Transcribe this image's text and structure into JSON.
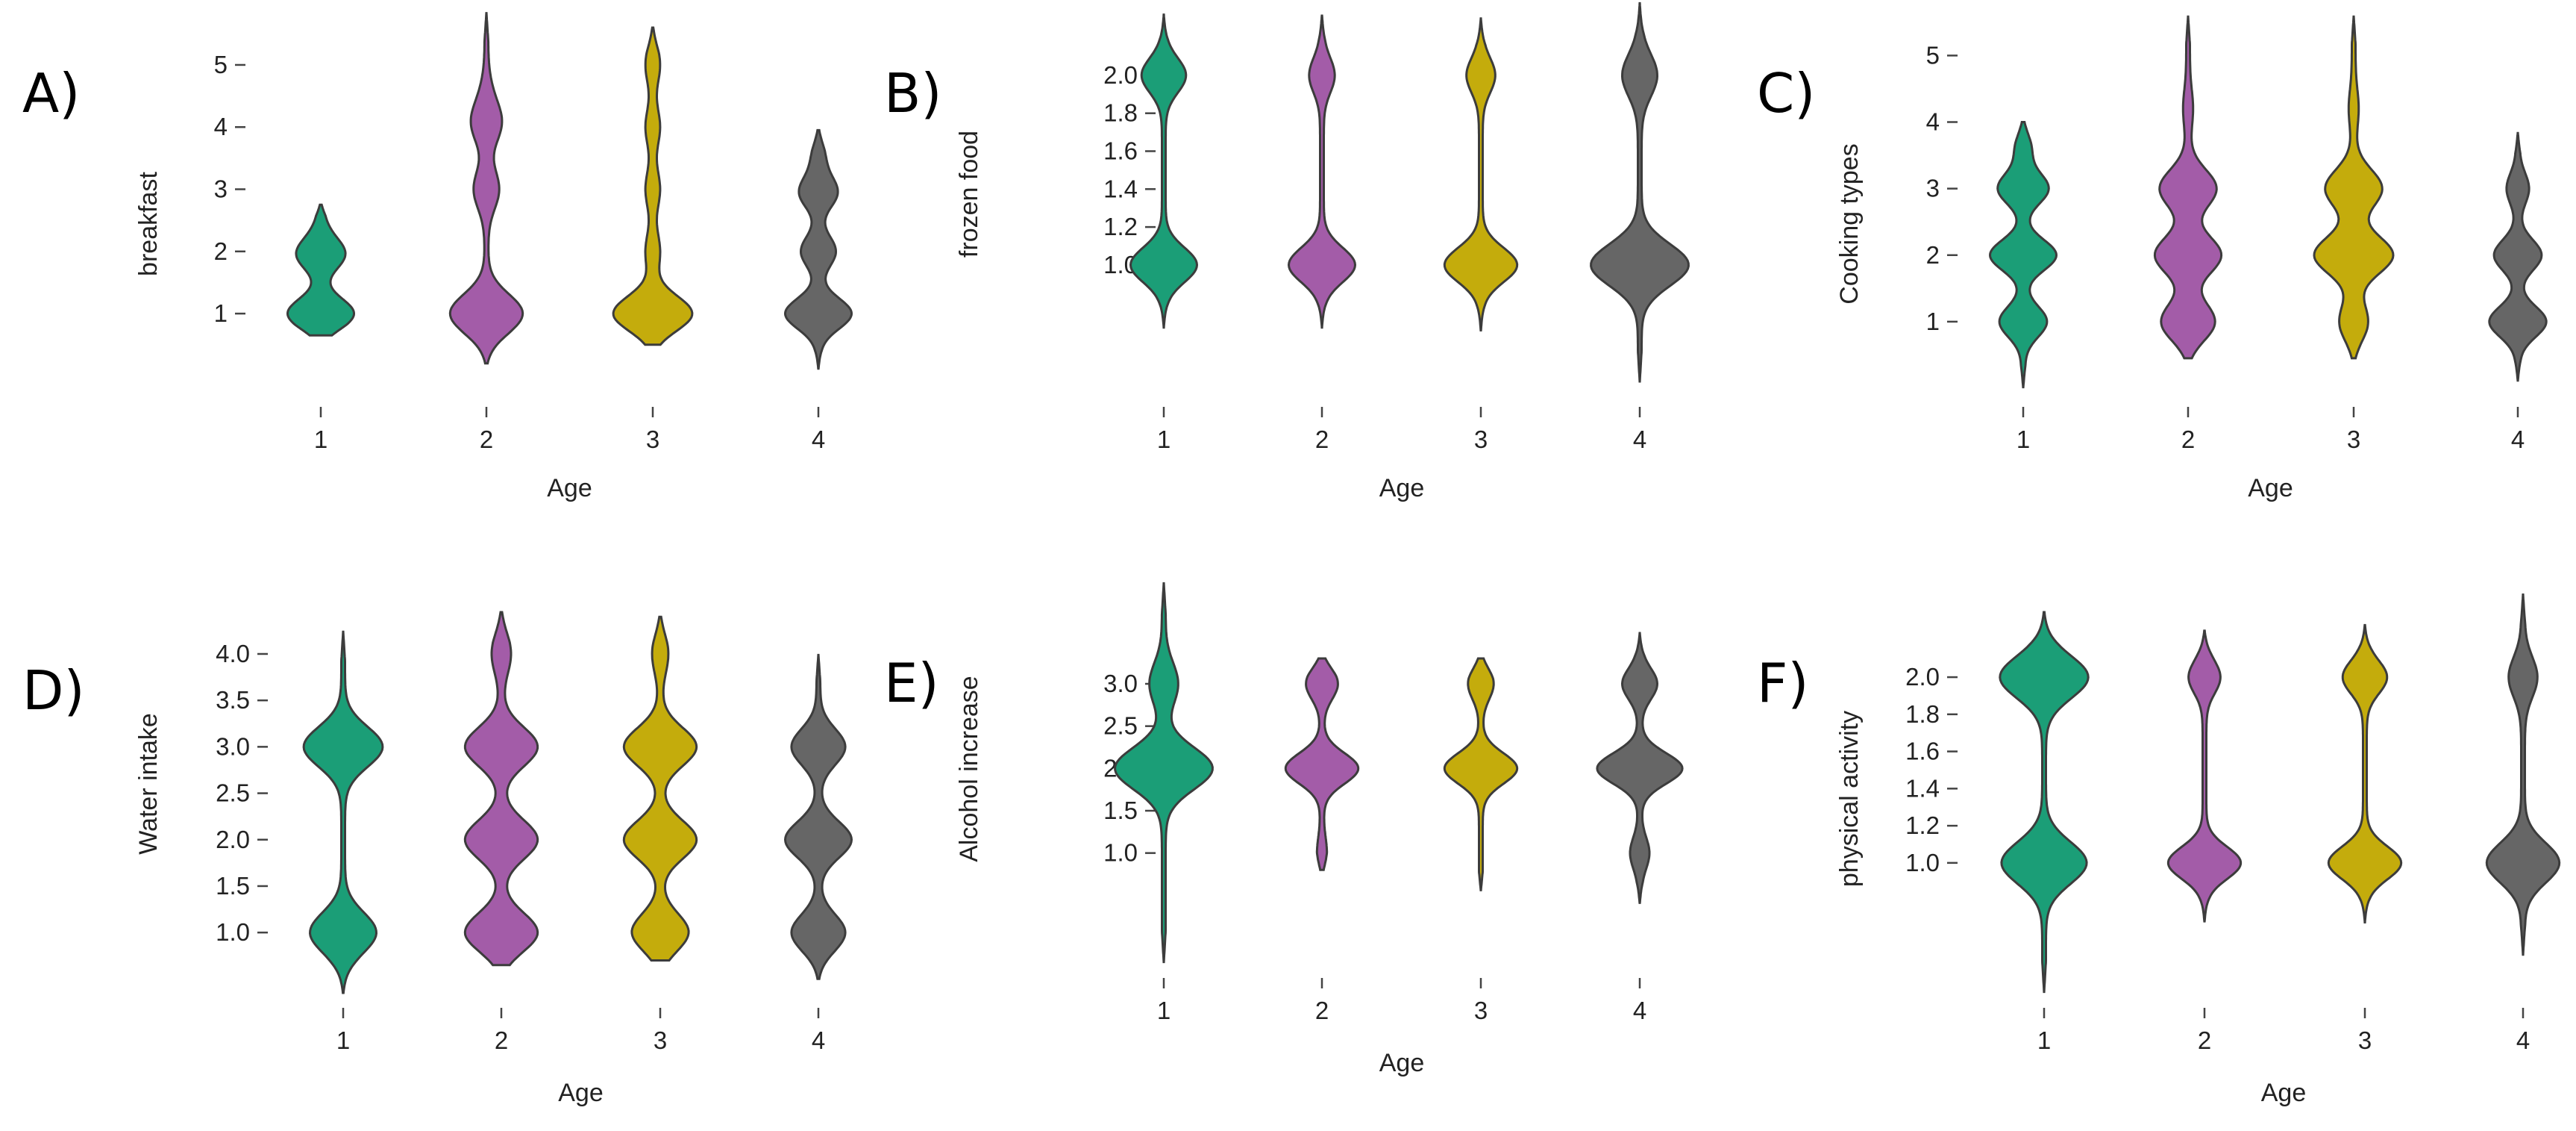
{
  "colors": {
    "group1": "#1b9e77",
    "group2": "#a35ca8",
    "group3": "#c4ac0c",
    "group4": "#666666"
  },
  "chart_data": [
    {
      "panel": "A)",
      "type": "violin",
      "xlabel": "Age",
      "ylabel": "breakfast",
      "categories": [
        "1",
        "2",
        "3",
        "4"
      ],
      "yticks": [
        "1",
        "2",
        "3",
        "4",
        "5"
      ],
      "ylim": [
        -0.2,
        5.9
      ],
      "series": [
        {
          "category": "1",
          "range": [
            0.65,
            2.75
          ],
          "peaks": [
            [
              1.0,
              0.2
            ],
            [
              1.95,
              0.14
            ],
            [
              2.35,
              0.02
            ]
          ]
        },
        {
          "category": "2",
          "range": [
            0.2,
            5.85
          ],
          "peaks": [
            [
              1.0,
              0.22
            ],
            [
              3.0,
              0.07
            ],
            [
              4.05,
              0.08
            ],
            [
              4.5,
              0.02
            ]
          ]
        },
        {
          "category": "3",
          "range": [
            0.5,
            5.6
          ],
          "peaks": [
            [
              1.0,
              0.24
            ],
            [
              2.0,
              0.035
            ],
            [
              3.0,
              0.035
            ],
            [
              4.0,
              0.035
            ],
            [
              5.0,
              0.035
            ]
          ]
        },
        {
          "category": "4",
          "range": [
            0.1,
            3.95
          ],
          "peaks": [
            [
              1.0,
              0.2
            ],
            [
              2.0,
              0.1
            ],
            [
              2.95,
              0.11
            ],
            [
              3.5,
              0.03
            ]
          ]
        }
      ]
    },
    {
      "panel": "B)",
      "type": "violin",
      "xlabel": "Age",
      "ylabel": "frozen food",
      "categories": [
        "1",
        "2",
        "3",
        "4"
      ],
      "yticks": [
        "1.0",
        "1.2",
        "1.4",
        "1.6",
        "1.8",
        "2.0"
      ],
      "ylim": [
        0.35,
        2.35
      ],
      "series": [
        {
          "category": "1",
          "range": [
            0.67,
            2.32
          ],
          "peaks": [
            [
              1.0,
              0.2
            ],
            [
              2.0,
              0.13
            ]
          ]
        },
        {
          "category": "2",
          "range": [
            0.67,
            2.32
          ],
          "peaks": [
            [
              1.0,
              0.2
            ],
            [
              2.0,
              0.07
            ]
          ]
        },
        {
          "category": "3",
          "range": [
            0.65,
            2.3
          ],
          "peaks": [
            [
              1.0,
              0.22
            ],
            [
              2.0,
              0.08
            ]
          ]
        },
        {
          "category": "4",
          "range": [
            0.38,
            2.38
          ],
          "peaks": [
            [
              1.0,
              0.3
            ],
            [
              2.0,
              0.1
            ]
          ]
        }
      ]
    },
    {
      "panel": "C)",
      "type": "violin",
      "xlabel": "Age",
      "ylabel": "Cooking types",
      "categories": [
        "1",
        "2",
        "3",
        "4"
      ],
      "yticks": [
        "1",
        "2",
        "3",
        "4",
        "5"
      ],
      "ylim": [
        0.0,
        5.7
      ],
      "series": [
        {
          "category": "1",
          "range": [
            0.0,
            4.0
          ],
          "peaks": [
            [
              1.0,
              0.14
            ],
            [
              2.0,
              0.2
            ],
            [
              3.0,
              0.15
            ],
            [
              3.6,
              0.04
            ]
          ]
        },
        {
          "category": "2",
          "range": [
            0.45,
            5.6
          ],
          "peaks": [
            [
              1.0,
              0.16
            ],
            [
              2.0,
              0.2
            ],
            [
              3.0,
              0.17
            ],
            [
              4.2,
              0.02
            ]
          ]
        },
        {
          "category": "3",
          "range": [
            0.45,
            5.6
          ],
          "peaks": [
            [
              1.0,
              0.08
            ],
            [
              2.0,
              0.24
            ],
            [
              3.0,
              0.17
            ],
            [
              4.2,
              0.02
            ]
          ]
        },
        {
          "category": "4",
          "range": [
            0.1,
            3.85
          ],
          "peaks": [
            [
              1.0,
              0.17
            ],
            [
              2.0,
              0.14
            ],
            [
              3.0,
              0.06
            ]
          ]
        }
      ]
    },
    {
      "panel": "D)",
      "type": "violin",
      "xlabel": "Age",
      "ylabel": "Water intake",
      "categories": [
        "1",
        "2",
        "3",
        "4"
      ],
      "yticks": [
        "1.0",
        "1.5",
        "2.0",
        "2.5",
        "3.0",
        "3.5",
        "4.0"
      ],
      "ylim": [
        0.35,
        4.45
      ],
      "series": [
        {
          "category": "1",
          "range": [
            0.35,
            4.25
          ],
          "peaks": [
            [
              1.0,
              0.2
            ],
            [
              3.0,
              0.24
            ]
          ]
        },
        {
          "category": "2",
          "range": [
            0.65,
            4.45
          ],
          "peaks": [
            [
              1.0,
              0.22
            ],
            [
              2.0,
              0.22
            ],
            [
              3.0,
              0.22
            ],
            [
              4.0,
              0.05
            ]
          ]
        },
        {
          "category": "3",
          "range": [
            0.7,
            4.4
          ],
          "peaks": [
            [
              1.0,
              0.17
            ],
            [
              2.0,
              0.22
            ],
            [
              3.0,
              0.22
            ],
            [
              4.0,
              0.04
            ]
          ]
        },
        {
          "category": "4",
          "range": [
            0.5,
            4.0
          ],
          "peaks": [
            [
              1.0,
              0.16
            ],
            [
              2.0,
              0.2
            ],
            [
              3.0,
              0.16
            ]
          ]
        }
      ]
    },
    {
      "panel": "E)",
      "type": "violin",
      "xlabel": "Age",
      "ylabel": "Alcohol increase",
      "categories": [
        "1",
        "2",
        "3",
        "4"
      ],
      "yticks": [
        "1.0",
        "1.5",
        "2.0",
        "2.5",
        "3.0"
      ],
      "ylim": [
        -0.3,
        4.2
      ],
      "series": [
        {
          "category": "1",
          "range": [
            -0.3,
            4.2
          ],
          "peaks": [
            [
              2.0,
              0.3
            ],
            [
              3.0,
              0.08
            ]
          ]
        },
        {
          "category": "2",
          "range": [
            0.8,
            3.3
          ],
          "peaks": [
            [
              2.0,
              0.22
            ],
            [
              3.0,
              0.09
            ],
            [
              1.0,
              0.02
            ]
          ]
        },
        {
          "category": "3",
          "range": [
            0.55,
            3.3
          ],
          "peaks": [
            [
              2.0,
              0.22
            ],
            [
              3.0,
              0.07
            ]
          ]
        },
        {
          "category": "4",
          "range": [
            0.4,
            3.6
          ],
          "peaks": [
            [
              2.0,
              0.26
            ],
            [
              3.0,
              0.1
            ],
            [
              1.0,
              0.05
            ]
          ]
        }
      ]
    },
    {
      "panel": "F)",
      "type": "violin",
      "xlabel": "Age",
      "ylabel": "physical activity",
      "categories": [
        "1",
        "2",
        "3",
        "4"
      ],
      "yticks": [
        "1.0",
        "1.2",
        "1.4",
        "1.6",
        "1.8",
        "2.0"
      ],
      "ylim": [
        0.3,
        2.35
      ],
      "series": [
        {
          "category": "1",
          "range": [
            0.3,
            2.35
          ],
          "peaks": [
            [
              1.0,
              0.26
            ],
            [
              2.0,
              0.27
            ]
          ]
        },
        {
          "category": "2",
          "range": [
            0.68,
            2.25
          ],
          "peaks": [
            [
              1.0,
              0.22
            ],
            [
              2.0,
              0.09
            ]
          ]
        },
        {
          "category": "3",
          "range": [
            0.68,
            2.28
          ],
          "peaks": [
            [
              1.0,
              0.22
            ],
            [
              2.0,
              0.13
            ]
          ]
        },
        {
          "category": "4",
          "range": [
            0.5,
            2.45
          ],
          "peaks": [
            [
              1.0,
              0.22
            ],
            [
              2.0,
              0.08
            ]
          ]
        }
      ]
    }
  ]
}
